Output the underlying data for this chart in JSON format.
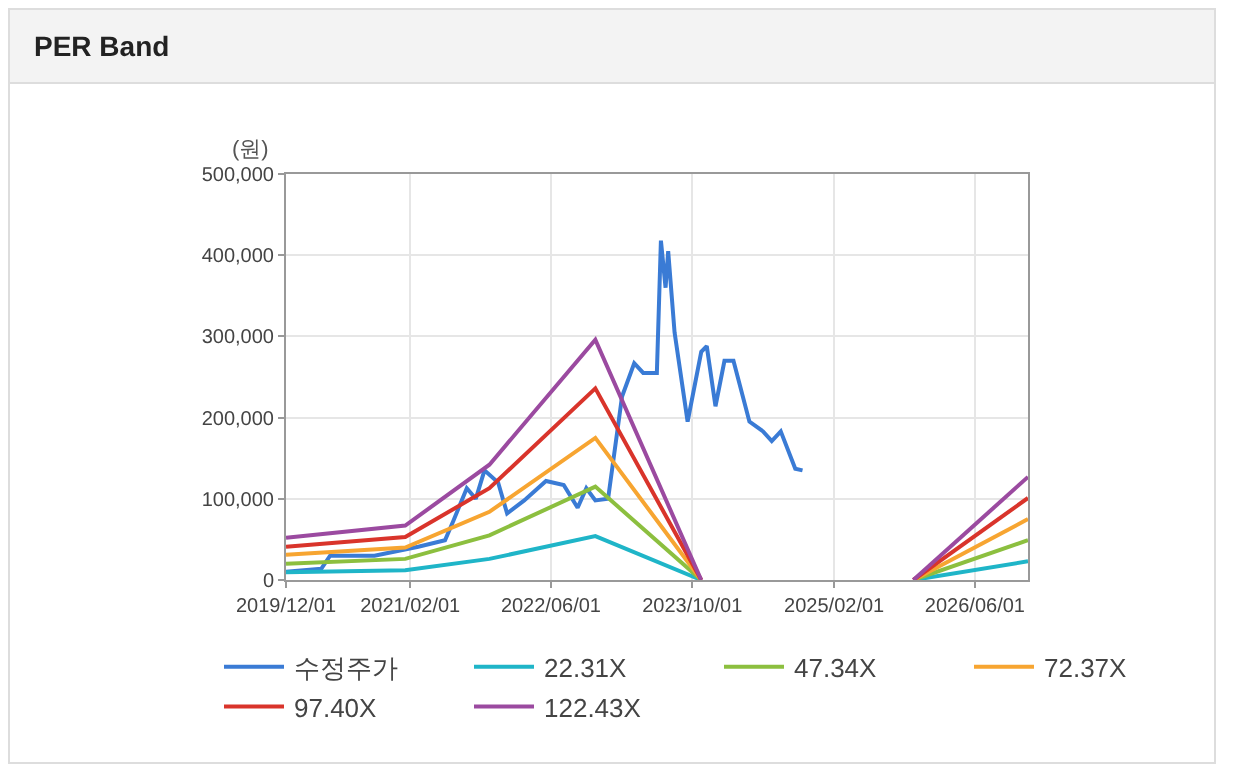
{
  "chart_data": {
    "type": "line",
    "title": "PER Band",
    "ylabel": "(원)",
    "xlim": [
      "2019-12-01",
      "2026-12-01"
    ],
    "xticks": [
      {
        "value": "2019-12-01",
        "label": "2019/12/01"
      },
      {
        "value": "2021-02-01",
        "label": "2021/02/01"
      },
      {
        "value": "2022-06-01",
        "label": "2022/06/01"
      },
      {
        "value": "2023-10-01",
        "label": "2023/10/01"
      },
      {
        "value": "2025-02-01",
        "label": "2025/02/01"
      },
      {
        "value": "2026-06-01",
        "label": "2026/06/01"
      }
    ],
    "ylim": [
      0,
      500000
    ],
    "yticks": [
      0,
      {
        "value": 100000,
        "label": "100,000"
      },
      {
        "value": 200000,
        "label": "200,000"
      },
      {
        "value": 300000,
        "label": "300,000"
      },
      {
        "value": 400000,
        "label": "400,000"
      },
      {
        "value": 500000,
        "label": "500,000"
      }
    ],
    "grid": true,
    "legend": "bottom",
    "marker": "none",
    "line_style": "solid",
    "x": [
      "2019-12-01",
      "2021-01-15",
      "2021-11-01",
      "2022-11-01",
      "2023-11-01",
      "2024-11-01",
      "2025-11-01",
      "2026-12-01"
    ],
    "series": [
      {
        "name": "수정주가",
        "color": "#3a7bd5",
        "x": [
          "2019-12-01",
          "2020-04-01",
          "2020-05-01",
          "2020-10-01",
          "2021-03-01",
          "2021-06-01",
          "2021-07-01",
          "2021-08-15",
          "2021-09-15",
          "2021-10-15",
          "2021-12-01",
          "2022-01-01",
          "2022-03-01",
          "2022-05-15",
          "2022-07-15",
          "2022-09-01",
          "2022-10-01",
          "2022-11-01",
          "2022-12-15",
          "2023-02-01",
          "2023-03-15",
          "2023-04-15",
          "2023-06-01",
          "2023-06-15",
          "2023-07-01",
          "2023-07-10",
          "2023-08-01",
          "2023-09-15",
          "2023-11-01",
          "2023-11-20",
          "2023-12-20",
          "2024-01-20",
          "2024-02-20",
          "2024-04-15",
          "2024-06-01",
          "2024-07-01",
          "2024-08-01",
          "2024-09-20",
          "2024-10-15"
        ],
        "values": [
          10000,
          14000,
          30000,
          30000,
          41000,
          49000,
          74000,
          113000,
          100000,
          135000,
          120000,
          82000,
          98000,
          122000,
          117000,
          89000,
          113000,
          98000,
          100000,
          226000,
          267000,
          255000,
          255000,
          418000,
          360000,
          405000,
          305000,
          195000,
          281000,
          288000,
          214000,
          270000,
          270000,
          195000,
          183000,
          171000,
          183000,
          137000,
          135000
        ]
      },
      {
        "name": "22.31X",
        "color": "#1fb5c8",
        "values": [
          9500,
          12000,
          26000,
          54000,
          0,
          null,
          0,
          23000
        ]
      },
      {
        "name": "47.34X",
        "color": "#8cbf3f",
        "values": [
          20000,
          26000,
          55000,
          115000,
          0,
          null,
          0,
          49000
        ]
      },
      {
        "name": "72.37X",
        "color": "#f7a531",
        "values": [
          31000,
          40000,
          84000,
          175000,
          0,
          null,
          0,
          75000
        ]
      },
      {
        "name": "97.40X",
        "color": "#d9342b",
        "values": [
          41000,
          53000,
          113000,
          236000,
          0,
          null,
          0,
          101000
        ]
      },
      {
        "name": "122.43X",
        "color": "#9b4aa0",
        "values": [
          52000,
          67000,
          142000,
          296000,
          0,
          null,
          0,
          127000
        ]
      }
    ]
  }
}
